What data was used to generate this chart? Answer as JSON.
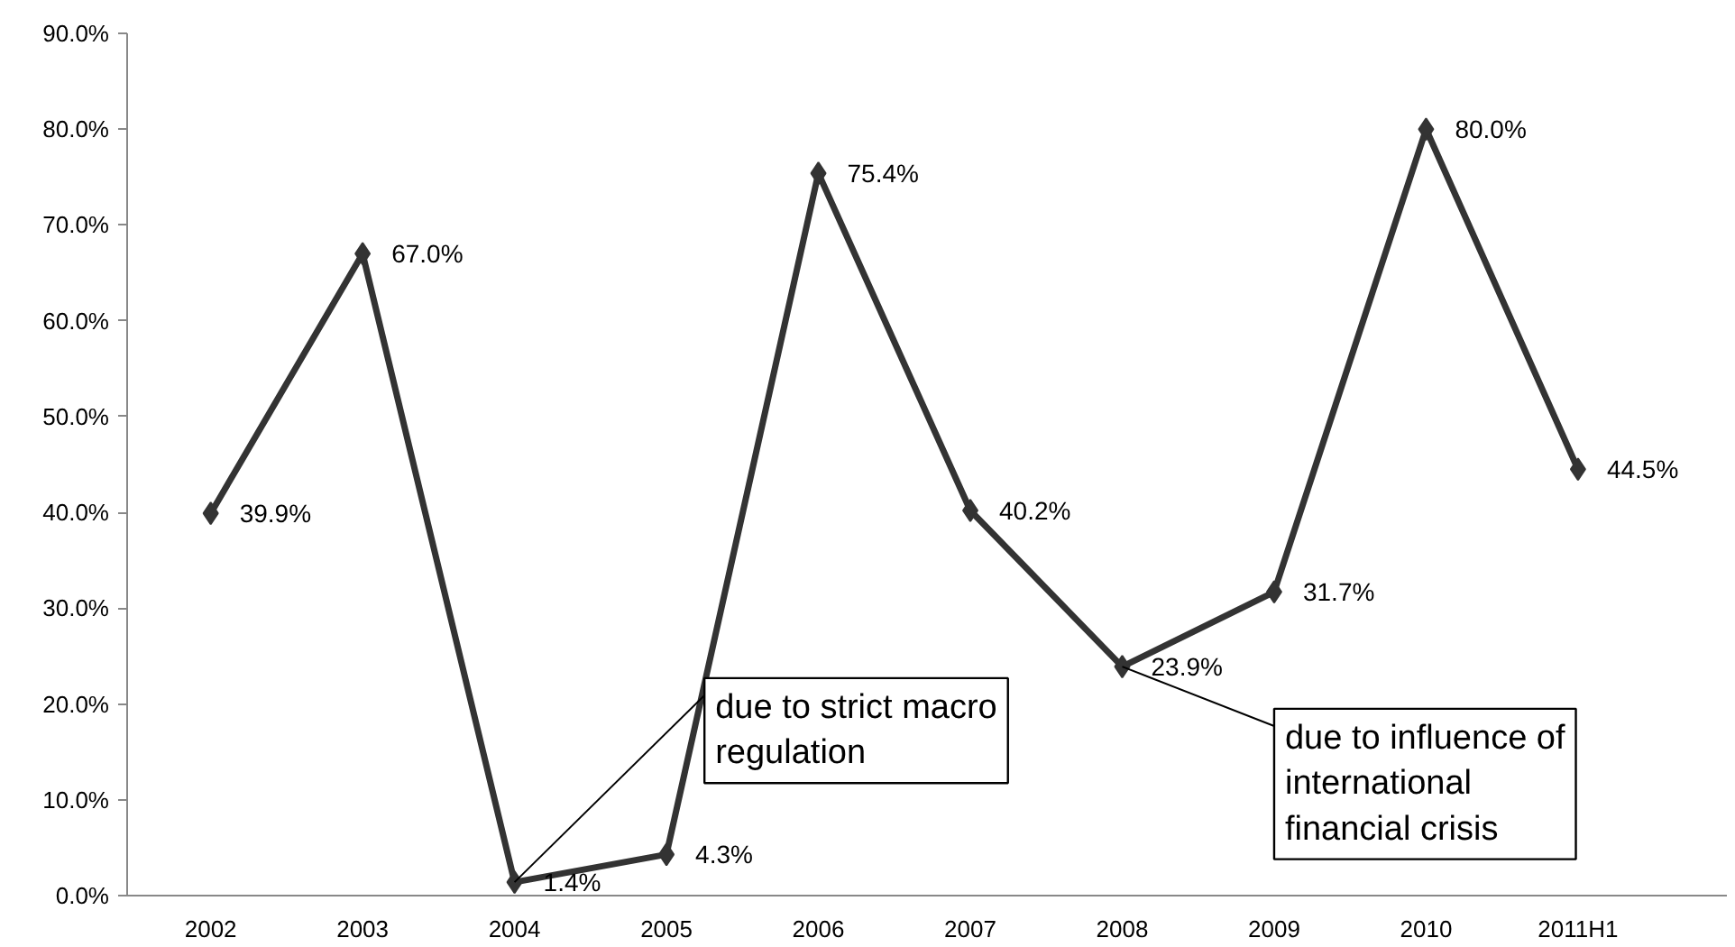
{
  "chart_data": {
    "type": "line",
    "categories": [
      "2002",
      "2003",
      "2004",
      "2005",
      "2006",
      "2007",
      "2008",
      "2009",
      "2010",
      "2011H1"
    ],
    "series": [
      {
        "color": "#333333",
        "values": [
          39.9,
          67.0,
          1.4,
          4.3,
          75.4,
          40.2,
          23.9,
          31.7,
          80.0,
          44.5
        ],
        "value_labels": [
          "39.9%",
          "67.0%",
          "1.4%",
          "4.3%",
          "75.4%",
          "40.2%",
          "23.9%",
          "31.7%",
          "80.0%",
          "44.5%"
        ]
      }
    ],
    "ylim": [
      0,
      90
    ],
    "yticks": [
      {
        "value": 0,
        "label": "0.0%"
      },
      {
        "value": 10,
        "label": "10.0%"
      },
      {
        "value": 20,
        "label": "20.0%"
      },
      {
        "value": 30,
        "label": "30.0%"
      },
      {
        "value": 40,
        "label": "40.0%"
      },
      {
        "value": 50,
        "label": "50.0%"
      },
      {
        "value": 60,
        "label": "60.0%"
      },
      {
        "value": 70,
        "label": "70.0%"
      },
      {
        "value": 80,
        "label": "80.0%"
      },
      {
        "value": 90,
        "label": "90.0%"
      }
    ],
    "grid": false,
    "marker": "diamond",
    "line_style": "solid",
    "annotations": [
      {
        "text": "due to strict macro regulation",
        "x": "2004",
        "y": 1.4
      },
      {
        "text": "due to influence of international financial crisis",
        "x": "2008",
        "y": 23.9
      }
    ]
  }
}
